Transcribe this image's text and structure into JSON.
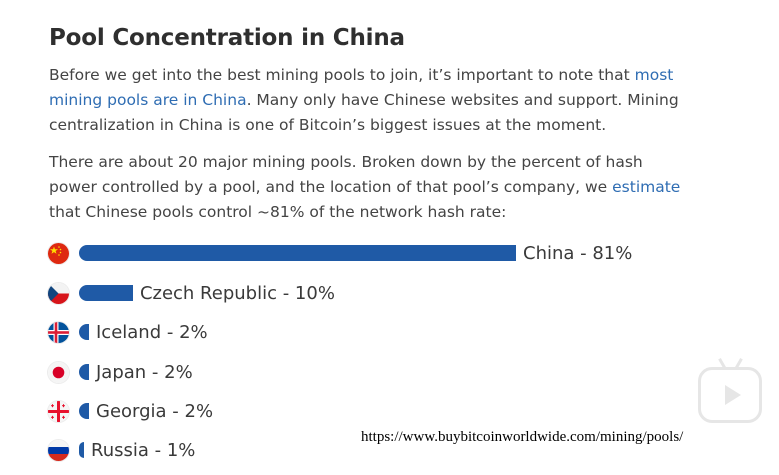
{
  "article": {
    "title": "Pool Concentration in China",
    "p1_before": "Before we get into the best mining pools to join, it’s important to note that ",
    "p1_link": "most mining pools are in China",
    "p1_after": ". Many only have Chinese websites and support. Mining centralization in China is one of Bitcoin’s biggest issues at the moment.",
    "p2_before": "There are about 20 major mining pools. Broken down by the percent of hash power controlled by a pool, and the location of that pool’s company, we ",
    "p2_link": "estimate",
    "p2_after": " that Chinese pools control ~81% of the network hash rate:"
  },
  "chart_data": {
    "type": "bar",
    "orientation": "horizontal",
    "bar_color": "#1f5aa6",
    "categories": [
      "China",
      "Czech Republic",
      "Iceland",
      "Japan",
      "Georgia",
      "Russia"
    ],
    "values": [
      81,
      10,
      2,
      2,
      2,
      1
    ],
    "labels": [
      "China - 81%",
      "Czech Republic - 10%",
      "Iceland - 2%",
      "Japan - 2%",
      "Georgia - 2%",
      "Russia - 1%"
    ],
    "flags": [
      "china-flag-icon",
      "czech-flag-icon",
      "iceland-flag-icon",
      "japan-flag-icon",
      "georgia-flag-icon",
      "russia-flag-icon"
    ]
  },
  "watermark": {
    "url": "https://www.buybitcoinworldwide.com/mining/pools/"
  },
  "overlay": {
    "icon": "video-play-icon"
  }
}
